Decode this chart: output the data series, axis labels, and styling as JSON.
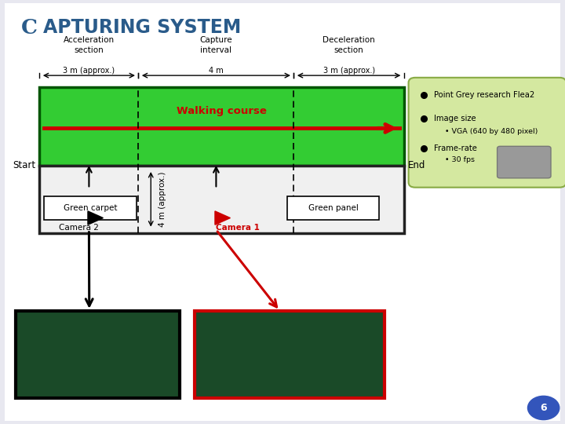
{
  "title_first": "C",
  "title_rest": "APTURING SYSTEM",
  "bg_color": "#e8e8f0",
  "slide_bg": "#ffffff",
  "green_rect_color": "#33cc33",
  "walking_course_color": "#cc0000",
  "walking_course_label": "Walking course",
  "annotation_bg": "#d4e8a0",
  "labels": {
    "start": "Start",
    "end": "End",
    "accel_title": "Acceleration\nsection",
    "accel_dist": "3 m (approx.)",
    "capture_title": "Capture\ninterval",
    "capture_dist": "4 m",
    "decel_title": "Deceleration\nsection",
    "decel_dist": "3 m (approx.)",
    "green_carpet": "Green carpet",
    "green_panel": "Green panel",
    "camera1": "Camera 1",
    "camera2": "Camera 2",
    "width_label": "4 m (approx.)",
    "point_grey": "Point Grey research Flea2",
    "image_size": "Image size",
    "image_size_sub": "• VGA (640 by 480 pixel)",
    "frame_rate": "Frame-rate",
    "frame_rate_sub": "• 30 fps"
  },
  "page_num": "6"
}
